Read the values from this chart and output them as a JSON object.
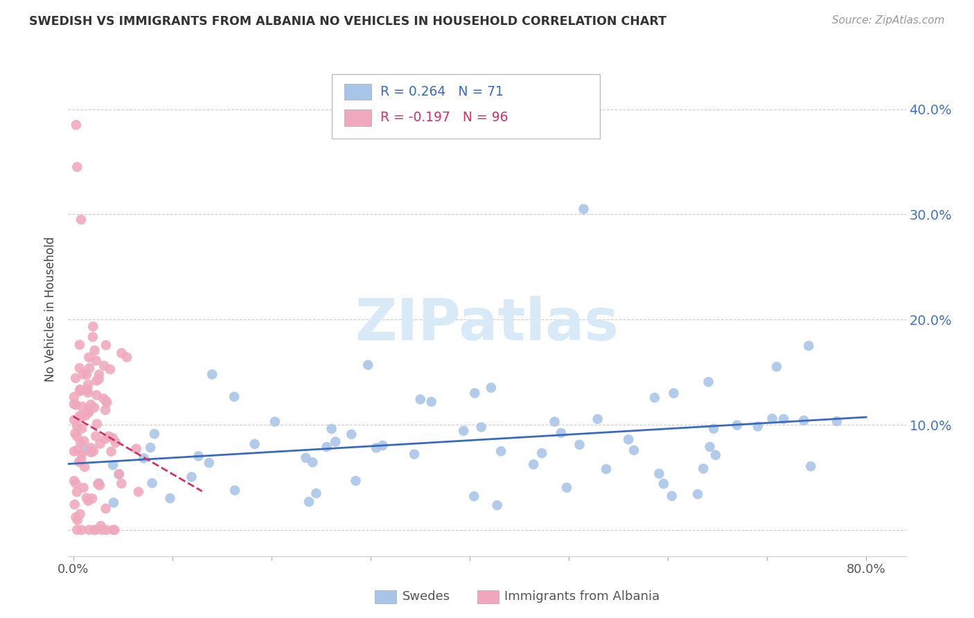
{
  "title": "SWEDISH VS IMMIGRANTS FROM ALBANIA NO VEHICLES IN HOUSEHOLD CORRELATION CHART",
  "source": "Source: ZipAtlas.com",
  "ylabel": "No Vehicles in Household",
  "legend_blue_label": "Swedes",
  "legend_pink_label": "Immigrants from Albania",
  "blue_R": 0.264,
  "blue_N": 71,
  "pink_R": -0.197,
  "pink_N": 96,
  "blue_color": "#a8c4e8",
  "pink_color": "#f0a8bc",
  "blue_line_color": "#3a6abf",
  "pink_line_color": "#cc3366",
  "title_color": "#333333",
  "axis_label_color": "#4472c4",
  "background_color": "#ffffff",
  "grid_color": "#cccccc",
  "watermark_color": "#d8eaf8",
  "xlim": [
    -0.005,
    0.84
  ],
  "ylim": [
    -0.025,
    0.445
  ],
  "x_ticks": [
    0.0,
    0.1,
    0.2,
    0.3,
    0.4,
    0.5,
    0.6,
    0.7,
    0.8
  ],
  "y_ticks": [
    0.0,
    0.1,
    0.2,
    0.3,
    0.4
  ],
  "x_tick_labels": [
    "0.0%",
    "",
    "",
    "",
    "",
    "",
    "",
    "",
    "80.0%"
  ],
  "y_tick_labels_right": [
    "10.0%",
    "20.0%",
    "30.0%",
    "40.0%"
  ]
}
